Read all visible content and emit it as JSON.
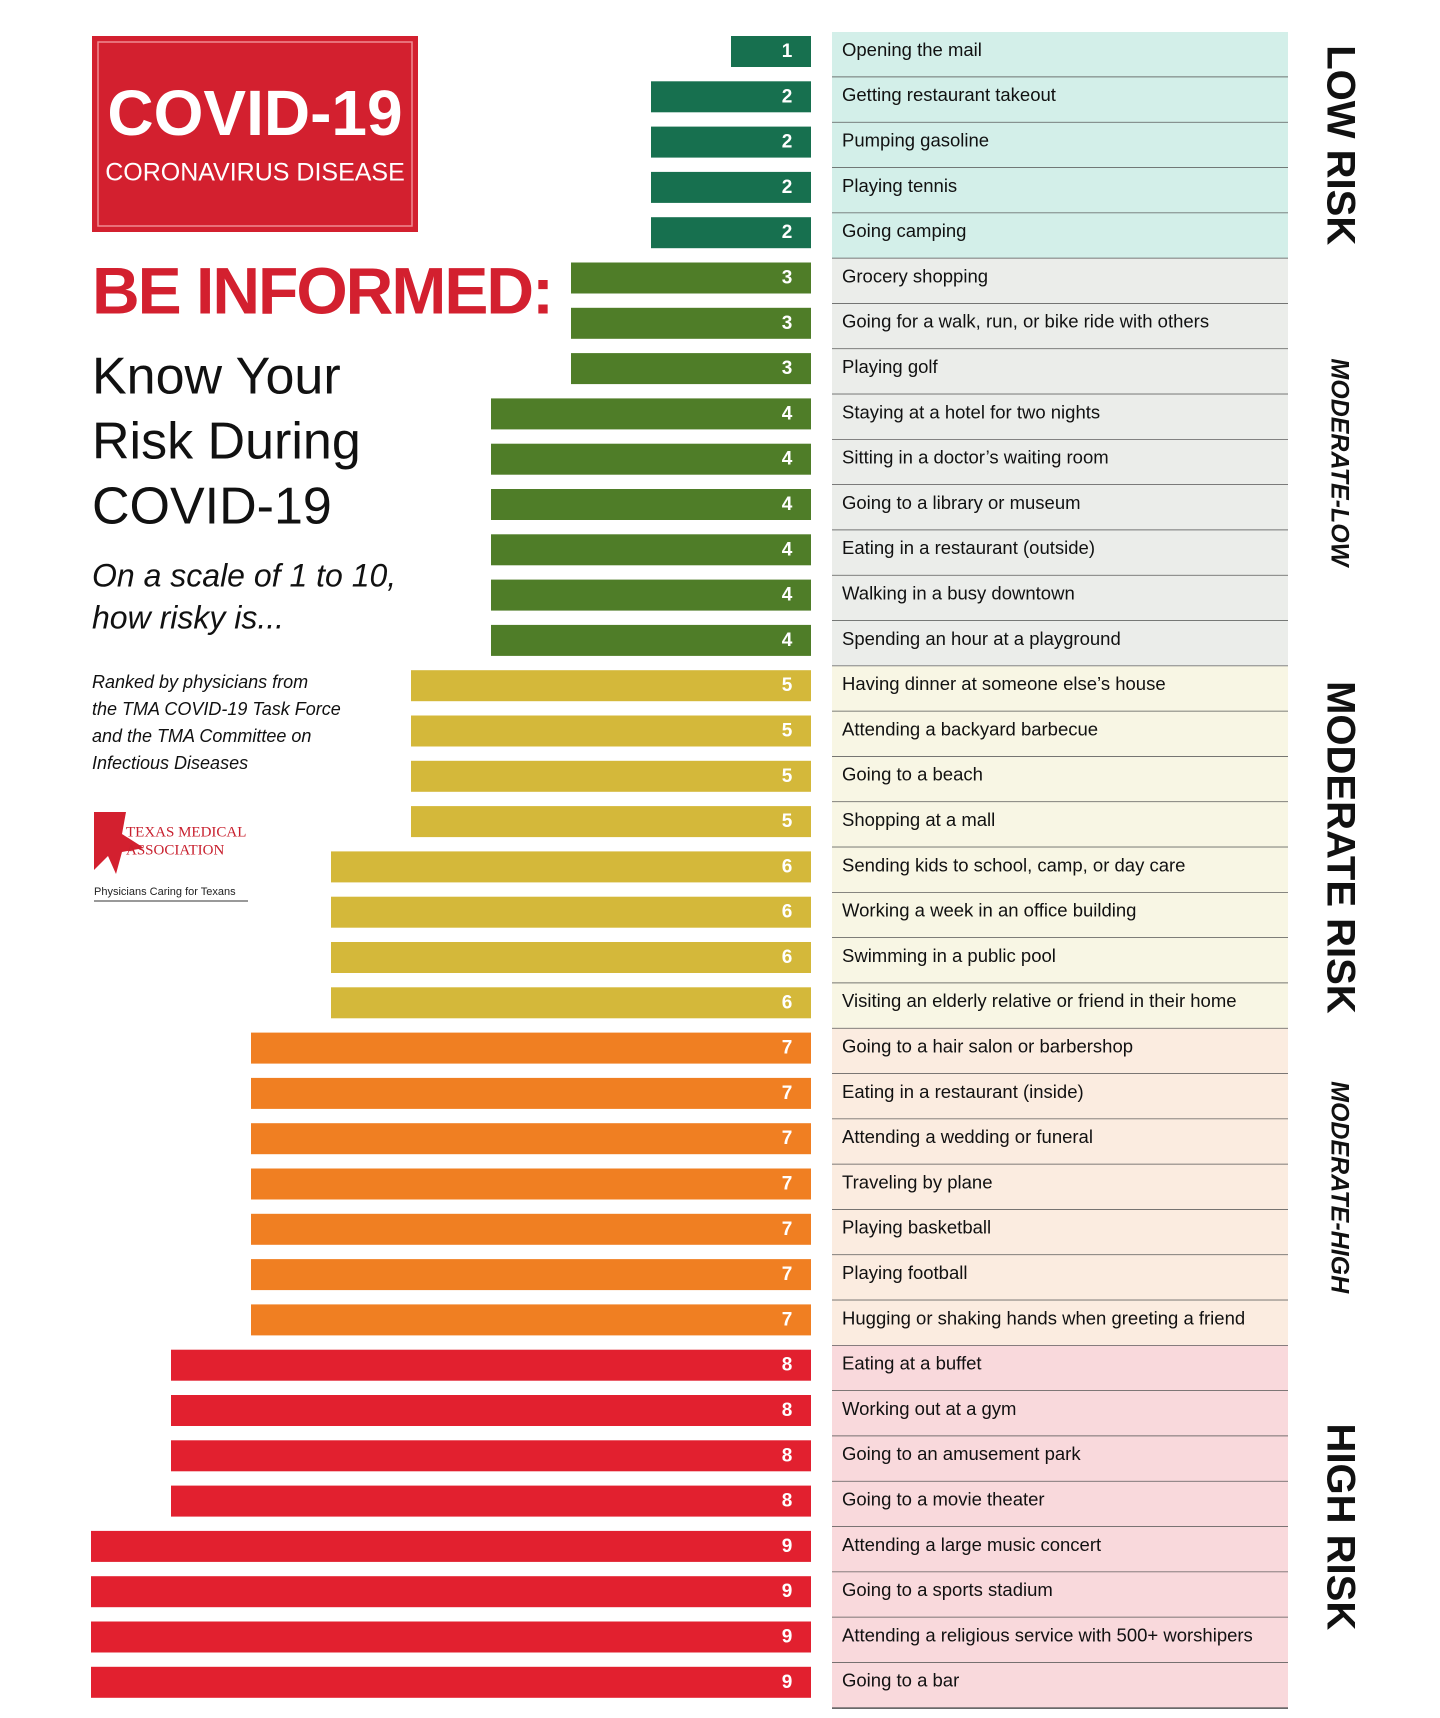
{
  "chart_data": {
    "type": "bar",
    "orientation": "horizontal",
    "header": {
      "badge_title": "COVID-19",
      "badge_subtitle": "CORONAVIRUS DISEASE",
      "headline": "BE INFORMED:",
      "title_lines": [
        "Know Your",
        "Risk During",
        "COVID-19"
      ],
      "question_lines": [
        "On a scale of 1 to 10,",
        "how risky is..."
      ],
      "source_lines": [
        "Ranked by physicians from",
        "the TMA COVID-19 Task Force",
        "and the TMA Committee on",
        "Infectious Diseases"
      ],
      "logo_lines": [
        "TEXAS MEDICAL",
        "ASSOCIATION"
      ],
      "logo_tagline": "Physicians Caring for Texans"
    },
    "categories": [
      "Opening the mail",
      "Getting restaurant takeout",
      "Pumping gasoline",
      "Playing tennis",
      "Going camping",
      "Grocery shopping",
      "Going for a walk, run, or bike ride with others",
      "Playing golf",
      "Staying at a hotel for two nights",
      "Sitting in a doctor’s waiting room",
      "Going to a library or museum",
      "Eating in a restaurant (outside)",
      "Walking in a busy downtown",
      "Spending an hour at a playground",
      "Having dinner at someone else’s house",
      "Attending a backyard barbecue",
      "Going to a beach",
      "Shopping at a mall",
      "Sending kids to school, camp, or day care",
      "Working a week in an office building",
      "Swimming in a public pool",
      "Visiting an elderly relative or friend in their home",
      "Going to a hair salon or barbershop",
      "Eating in a restaurant (inside)",
      "Attending a wedding or funeral",
      "Traveling by plane",
      "Playing basketball",
      "Playing football",
      "Hugging or shaking hands when greeting a friend",
      "Eating at a buffet",
      "Working out at a gym",
      "Going to an amusement park",
      "Going to a movie theater",
      "Attending a large music concert",
      "Going to a sports stadium",
      "Attending a religious service with 500+ worshipers",
      "Going to a bar"
    ],
    "values": [
      1,
      2,
      2,
      2,
      2,
      3,
      3,
      3,
      4,
      4,
      4,
      4,
      4,
      4,
      5,
      5,
      5,
      5,
      6,
      6,
      6,
      6,
      7,
      7,
      7,
      7,
      7,
      7,
      7,
      8,
      8,
      8,
      8,
      9,
      9,
      9,
      9
    ],
    "colors": [
      "#17704f",
      "#17704f",
      "#17704f",
      "#17704f",
      "#17704f",
      "#4f7d28",
      "#4f7d28",
      "#4f7d28",
      "#4f7d28",
      "#4f7d28",
      "#4f7d28",
      "#4f7d28",
      "#4f7d28",
      "#4f7d28",
      "#d4b83a",
      "#d4b83a",
      "#d4b83a",
      "#d4b83a",
      "#d4b83a",
      "#d4b83a",
      "#d4b83a",
      "#d4b83a",
      "#f07f22",
      "#f07f22",
      "#f07f22",
      "#f07f22",
      "#f07f22",
      "#f07f22",
      "#f07f22",
      "#e2202f",
      "#e2202f",
      "#e2202f",
      "#e2202f",
      "#e2202f",
      "#e2202f",
      "#e2202f",
      "#e2202f"
    ],
    "zones": [
      {
        "name": "LOW RISK",
        "rows": [
          0,
          4
        ],
        "color": "#d3efe9",
        "emphasis": "major"
      },
      {
        "name": "MODERATE-LOW",
        "rows": [
          5,
          13
        ],
        "color": "#ebedea",
        "emphasis": "minor"
      },
      {
        "name": "MODERATE RISK",
        "rows": [
          14,
          21
        ],
        "color": "#f8f6e4",
        "emphasis": "major"
      },
      {
        "name": "MODERATE-HIGH",
        "rows": [
          22,
          28
        ],
        "color": "#fbece0",
        "emphasis": "minor"
      },
      {
        "name": "HIGH RISK",
        "rows": [
          29,
          36
        ],
        "color": "#f9d9dc",
        "emphasis": "major"
      }
    ]
  }
}
